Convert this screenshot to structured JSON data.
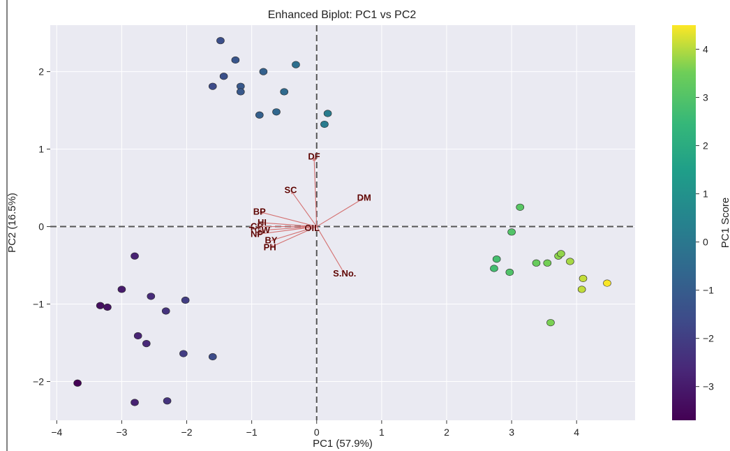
{
  "chart_data": {
    "type": "scatter",
    "title": "Enhanced Biplot: PC1 vs PC2",
    "xlabel": "PC1 (57.9%)",
    "ylabel": "PC2 (16.5%)",
    "xlim": [
      -4.1,
      4.9
    ],
    "ylim": [
      -2.5,
      2.6
    ],
    "xticks": [
      -4,
      -3,
      -2,
      -1,
      0,
      1,
      2,
      3,
      4
    ],
    "yticks": [
      -2,
      -1,
      0,
      1,
      2
    ],
    "grid": true,
    "colormap": "viridis",
    "colorbar": {
      "label": "PC1 Score",
      "range": [
        -3.7,
        4.5
      ],
      "ticks": [
        -3,
        -2,
        -1,
        0,
        1,
        2,
        3,
        4
      ]
    },
    "reference_lines": {
      "x": 0,
      "y": 0,
      "style": "dashed"
    },
    "points": [
      {
        "x": -1.48,
        "y": 2.4
      },
      {
        "x": -1.25,
        "y": 2.15
      },
      {
        "x": -0.82,
        "y": 2.0
      },
      {
        "x": -0.32,
        "y": 2.09
      },
      {
        "x": -1.43,
        "y": 1.94
      },
      {
        "x": -1.6,
        "y": 1.81
      },
      {
        "x": -1.17,
        "y": 1.81
      },
      {
        "x": -1.17,
        "y": 1.74
      },
      {
        "x": -0.5,
        "y": 1.74
      },
      {
        "x": -0.88,
        "y": 1.44
      },
      {
        "x": -0.62,
        "y": 1.48
      },
      {
        "x": 0.17,
        "y": 1.46
      },
      {
        "x": 0.12,
        "y": 1.32
      },
      {
        "x": -2.8,
        "y": -0.38
      },
      {
        "x": -3.0,
        "y": -0.81
      },
      {
        "x": -2.55,
        "y": -0.9
      },
      {
        "x": -2.02,
        "y": -0.95
      },
      {
        "x": -3.33,
        "y": -1.02
      },
      {
        "x": -3.22,
        "y": -1.04
      },
      {
        "x": -2.32,
        "y": -1.09
      },
      {
        "x": -2.75,
        "y": -1.41
      },
      {
        "x": -2.62,
        "y": -1.51
      },
      {
        "x": -2.05,
        "y": -1.64
      },
      {
        "x": -1.6,
        "y": -1.68
      },
      {
        "x": -3.68,
        "y": -2.02
      },
      {
        "x": -2.8,
        "y": -2.27
      },
      {
        "x": -2.3,
        "y": -2.25
      },
      {
        "x": 3.13,
        "y": 0.25
      },
      {
        "x": 3.0,
        "y": -0.07
      },
      {
        "x": 2.77,
        "y": -0.42
      },
      {
        "x": 2.73,
        "y": -0.54
      },
      {
        "x": 2.97,
        "y": -0.59
      },
      {
        "x": 3.38,
        "y": -0.47
      },
      {
        "x": 3.55,
        "y": -0.47
      },
      {
        "x": 3.72,
        "y": -0.38
      },
      {
        "x": 3.76,
        "y": -0.35
      },
      {
        "x": 3.9,
        "y": -0.45
      },
      {
        "x": 4.1,
        "y": -0.67
      },
      {
        "x": 4.08,
        "y": -0.81
      },
      {
        "x": 4.47,
        "y": -0.73
      },
      {
        "x": 3.6,
        "y": -1.24
      }
    ],
    "loadings": [
      {
        "label": "DF",
        "x": -0.04,
        "y": 0.9
      },
      {
        "label": "SC",
        "x": -0.4,
        "y": 0.47
      },
      {
        "label": "DM",
        "x": 0.73,
        "y": 0.37
      },
      {
        "label": "BP",
        "x": -0.88,
        "y": 0.19
      },
      {
        "label": "HI",
        "x": -0.84,
        "y": 0.05
      },
      {
        "label": "CP",
        "x": -0.92,
        "y": 0.0
      },
      {
        "label": "TGW",
        "x": -0.88,
        "y": -0.05
      },
      {
        "label": "NP",
        "x": -0.92,
        "y": -0.1
      },
      {
        "label": "BY",
        "x": -0.7,
        "y": -0.18
      },
      {
        "label": "PH",
        "x": -0.72,
        "y": -0.27
      },
      {
        "label": "OIL",
        "x": -0.07,
        "y": -0.02
      },
      {
        "label": "S.No.",
        "x": 0.43,
        "y": -0.61
      }
    ]
  }
}
